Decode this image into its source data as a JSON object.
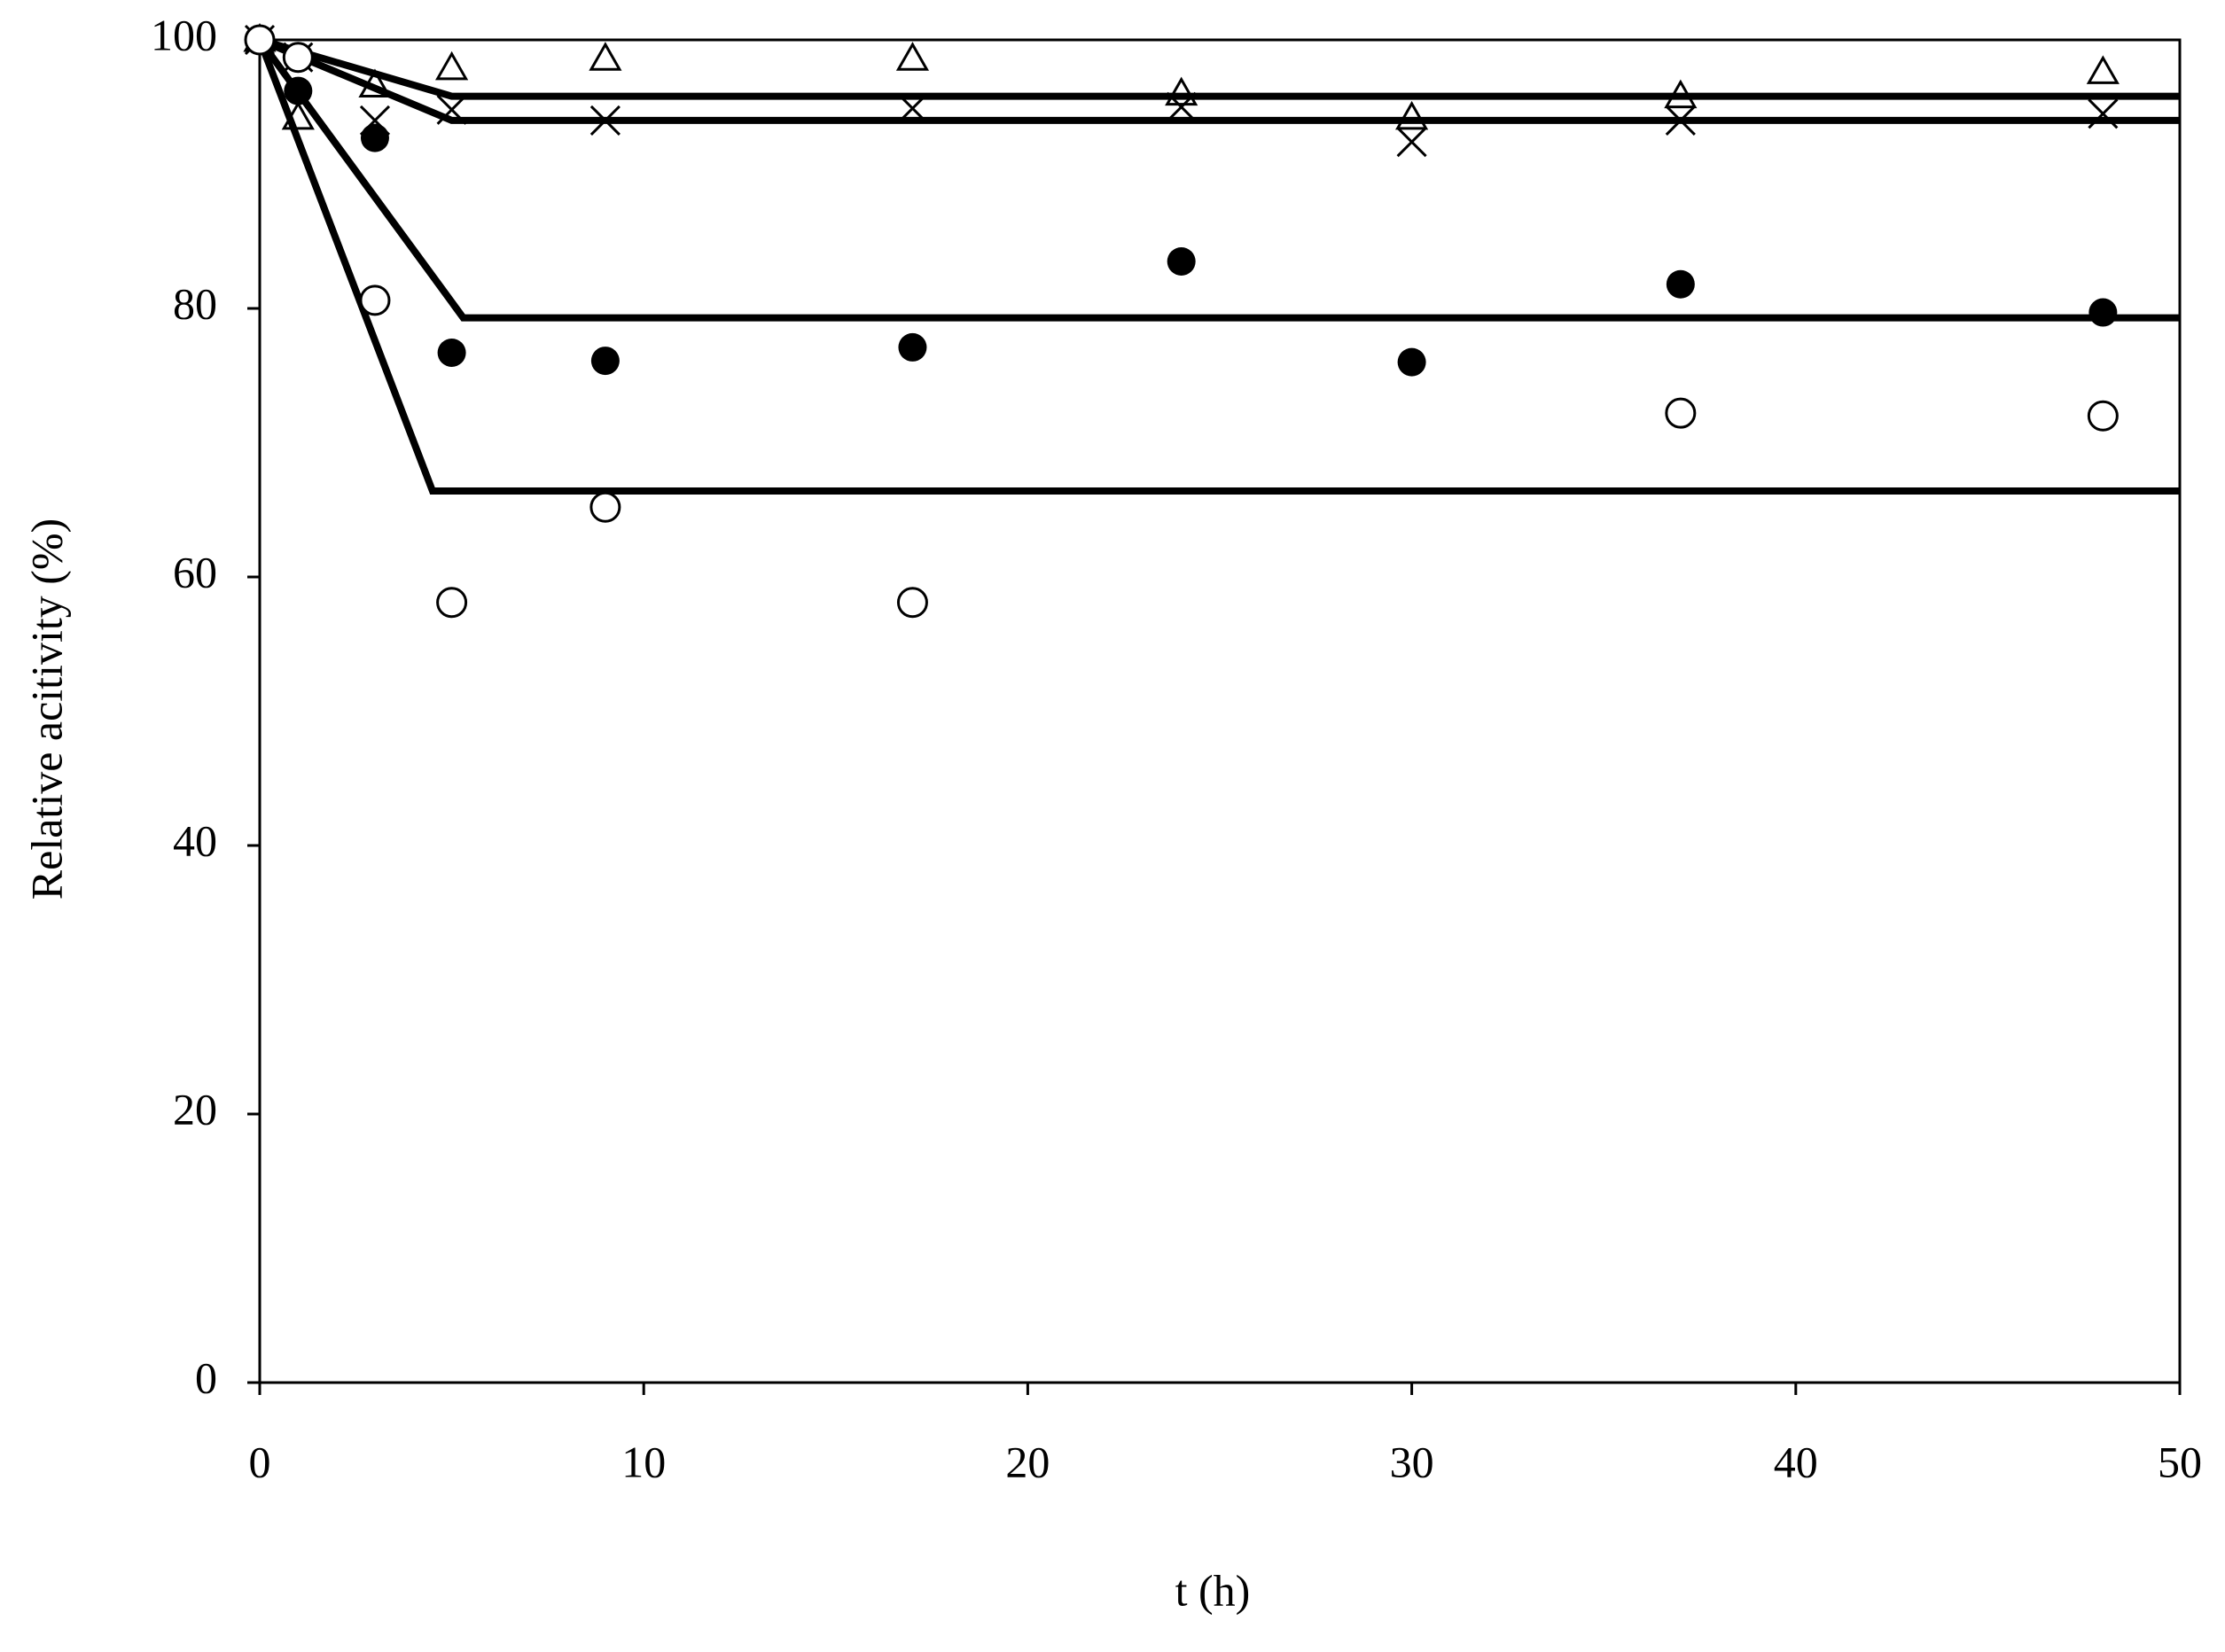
{
  "chart_data": {
    "type": "scatter",
    "xlabel": "t (h)",
    "ylabel": "Relative acitivity (%)",
    "xlim": [
      0,
      50
    ],
    "xticks": [
      0,
      10,
      20,
      30,
      40,
      50
    ],
    "ylim": [
      0,
      100
    ],
    "yticks": [
      0,
      20,
      40,
      60,
      80,
      100
    ],
    "grid": false,
    "series": [
      {
        "color": "#000000",
        "marker": "triangle",
        "x": [
          0,
          1,
          3,
          5,
          9,
          17,
          24,
          30,
          37,
          48
        ],
        "values": [
          100,
          94.2,
          96.6,
          97.9,
          98.6,
          98.6,
          96,
          94.2,
          95.8,
          97.6
        ]
      },
      {
        "color": "#000000",
        "marker": "cross",
        "x": [
          0,
          1,
          3,
          5,
          9,
          17,
          24,
          30,
          37,
          48
        ],
        "values": [
          100,
          98.7,
          94,
          94.8,
          94,
          94.9,
          95,
          92.4,
          94,
          94.5
        ]
      },
      {
        "color": "#000000",
        "marker": "filled-circle",
        "x": [
          0,
          1,
          3,
          5,
          9,
          17,
          24,
          30,
          37,
          48
        ],
        "values": [
          100,
          96.2,
          92.7,
          76.7,
          76.1,
          77.1,
          83.5,
          76,
          81.8,
          79.7
        ]
      },
      {
        "color": "#000000",
        "marker": "open-circle",
        "x": [
          0,
          1,
          3,
          5,
          9,
          17,
          37,
          48
        ],
        "values": [
          100,
          98.7,
          80.6,
          58.1,
          65.2,
          58.1,
          72.2,
          72
        ]
      },
      {
        "color": "#000000",
        "marker": "line",
        "x": [
          0,
          5,
          50
        ],
        "values": [
          100,
          95.8,
          95.8
        ]
      },
      {
        "color": "#000000",
        "marker": "line",
        "x": [
          0,
          5,
          50
        ],
        "values": [
          100,
          94,
          94
        ]
      },
      {
        "color": "#000000",
        "marker": "line",
        "x": [
          0,
          5.3,
          50
        ],
        "values": [
          100,
          79.3,
          79.3
        ]
      },
      {
        "color": "#000000",
        "marker": "line",
        "x": [
          0,
          4.5,
          50
        ],
        "values": [
          100,
          66.4,
          66.4
        ]
      }
    ]
  }
}
